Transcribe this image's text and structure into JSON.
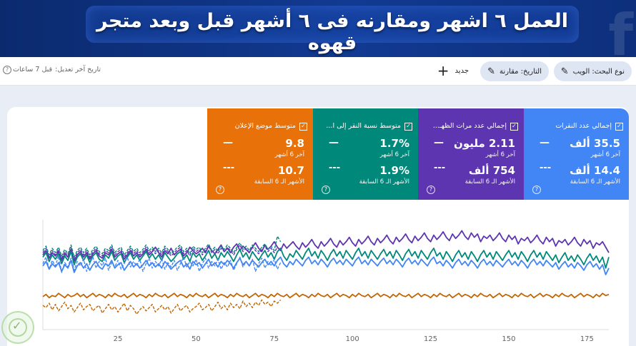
{
  "banner": {
    "title": "العمل ٦ اشهر ومقارنه فى ٦ أشهر قبل وبعد متجر قهوه",
    "logo_letter": "f"
  },
  "toolbar": {
    "search_type_label": "نوع البحث: الويب",
    "date_label": "التاريخ: مقارنة",
    "new_label": "جديد",
    "last_updated_label": "تاريخ آخر تعديل:",
    "last_updated_value": "قبل 7 ساعات"
  },
  "cards": [
    {
      "label": "إجمالي عدد النقرات",
      "value_current": "35.5 ألف",
      "caption_current": "آخر 6 أشهر",
      "value_previous": "14.4 ألف",
      "caption_previous": "الأشهر الـ 6 السابقة",
      "dash_current": "—",
      "dash_previous": "---",
      "color": "#4285f4"
    },
    {
      "label": "إجمالي عدد مرات الظهـ...",
      "value_current": "2.11 مليون",
      "caption_current": "آخر 6 أشهر",
      "value_previous": "754 ألف",
      "caption_previous": "الأشهر الـ 6 السابقة",
      "dash_current": "—",
      "dash_previous": "---",
      "color": "#5e35b1"
    },
    {
      "label": "متوسط نسبة النقر إلى ا...",
      "value_current": "1.7%",
      "caption_current": "آخر 6 أشهر",
      "value_previous": "1.9%",
      "caption_previous": "الأشهر الـ 6 السابقة",
      "dash_current": "—",
      "dash_previous": "---",
      "color": "#00897b"
    },
    {
      "label": "متوسط موضع الإعلان",
      "value_current": "9.8",
      "caption_current": "آخر 6 أشهر",
      "value_previous": "10.7",
      "caption_previous": "الأشهر الـ 6 السابقة",
      "dash_current": "—",
      "dash_previous": "---",
      "color": "#e8710a"
    }
  ],
  "icons": {
    "edit": "pencil-icon",
    "add": "plus-icon",
    "help": "help-circle-icon",
    "checkbox": "checkbox-checked-icon"
  },
  "chart_data": {
    "type": "line",
    "x_ticks": [
      "25",
      "50",
      "75",
      "100",
      "125",
      "150",
      "175"
    ],
    "xlim": [
      1,
      182
    ],
    "ylim": [
      0,
      100
    ],
    "grid": false,
    "legend": "none",
    "series": [
      {
        "key": "impressions_current",
        "color": "#5e35b1",
        "dashed": false,
        "values": [
          68,
          72,
          65,
          70,
          67,
          71,
          63,
          69,
          66,
          73,
          62,
          68,
          71,
          66,
          70,
          64,
          69,
          72,
          67,
          65,
          70,
          68,
          73,
          66,
          69,
          71,
          64,
          68,
          72,
          67,
          70,
          66,
          69,
          73,
          68,
          71,
          75,
          70,
          66,
          72,
          69,
          74,
          68,
          71,
          73,
          67,
          70,
          75,
          72,
          69,
          71,
          74,
          70,
          76,
          72,
          69,
          73,
          77,
          71,
          74,
          70,
          75,
          78,
          72,
          76,
          73,
          70,
          75,
          79,
          74,
          71,
          77,
          73,
          76,
          80,
          75,
          72,
          78,
          74,
          77,
          80,
          76,
          73,
          79,
          75,
          78,
          82,
          77,
          74,
          80,
          76,
          79,
          83,
          78,
          75,
          81,
          77,
          80,
          84,
          79,
          76,
          82,
          78,
          81,
          85,
          80,
          77,
          83,
          79,
          82,
          86,
          81,
          78,
          84,
          80,
          83,
          87,
          82,
          79,
          85,
          81,
          84,
          88,
          83,
          80,
          86,
          82,
          85,
          89,
          84,
          81,
          87,
          83,
          86,
          90,
          85,
          82,
          88,
          84,
          87,
          80,
          85,
          83,
          86,
          81,
          84,
          88,
          83,
          80,
          86,
          82,
          85,
          78,
          83,
          81,
          84,
          79,
          82,
          86,
          81,
          78,
          84,
          80,
          83,
          76,
          81,
          79,
          82,
          77,
          80,
          84,
          79,
          76,
          82,
          78,
          81,
          74,
          79,
          77,
          80,
          75,
          70
        ]
      },
      {
        "key": "clicks_current",
        "color": "#4285f4",
        "dashed": false,
        "values": [
          58,
          62,
          55,
          60,
          57,
          61,
          53,
          59,
          56,
          63,
          52,
          58,
          61,
          56,
          60,
          54,
          59,
          62,
          57,
          55,
          60,
          58,
          63,
          56,
          59,
          61,
          54,
          58,
          62,
          57,
          60,
          56,
          59,
          63,
          58,
          61,
          57,
          60,
          56,
          62,
          59,
          55,
          58,
          61,
          63,
          57,
          60,
          55,
          62,
          59,
          61,
          56,
          60,
          64,
          58,
          61,
          57,
          62,
          59,
          63,
          60,
          56,
          61,
          65,
          59,
          62,
          58,
          63,
          60,
          57,
          61,
          64,
          59,
          62,
          58,
          63,
          66,
          60,
          57,
          62,
          59,
          64,
          61,
          58,
          63,
          66,
          60,
          63,
          59,
          64,
          61,
          57,
          62,
          65,
          60,
          63,
          59,
          64,
          61,
          58,
          63,
          66,
          60,
          63,
          59,
          64,
          61,
          58,
          62,
          65,
          60,
          63,
          59,
          64,
          61,
          57,
          62,
          65,
          60,
          63,
          59,
          64,
          61,
          58,
          63,
          66,
          60,
          62,
          58,
          63,
          60,
          56,
          61,
          64,
          59,
          62,
          58,
          63,
          60,
          56,
          61,
          64,
          59,
          62,
          58,
          63,
          60,
          57,
          61,
          64,
          59,
          62,
          58,
          63,
          60,
          56,
          61,
          64,
          59,
          62,
          58,
          63,
          60,
          57,
          61,
          55,
          59,
          62,
          57,
          60,
          56,
          61,
          58,
          54,
          59,
          62,
          57,
          60,
          55,
          59,
          50,
          56
        ]
      },
      {
        "key": "ctr_current",
        "color": "#00897b",
        "dashed": false,
        "values": [
          66,
          70,
          62,
          68,
          64,
          69,
          60,
          67,
          63,
          71,
          59,
          66,
          69,
          63,
          68,
          61,
          67,
          70,
          64,
          62,
          68,
          65,
          71,
          63,
          67,
          69,
          61,
          66,
          70,
          64,
          68,
          63,
          67,
          71,
          65,
          69,
          64,
          68,
          63,
          70,
          66,
          62,
          65,
          69,
          71,
          64,
          68,
          62,
          70,
          66,
          69,
          63,
          67,
          72,
          65,
          69,
          63,
          70,
          66,
          71,
          67,
          62,
          68,
          73,
          66,
          70,
          64,
          71,
          67,
          63,
          68,
          72,
          66,
          70,
          64,
          71,
          74,
          67,
          63,
          69,
          66,
          72,
          68,
          64,
          70,
          74,
          67,
          71,
          65,
          72,
          68,
          63,
          69,
          73,
          67,
          71,
          65,
          72,
          68,
          64,
          70,
          74,
          67,
          71,
          65,
          72,
          68,
          64,
          69,
          73,
          67,
          71,
          65,
          72,
          68,
          63,
          69,
          73,
          67,
          71,
          65,
          72,
          68,
          64,
          70,
          74,
          67,
          70,
          64,
          71,
          67,
          62,
          68,
          72,
          66,
          70,
          64,
          71,
          67,
          62,
          68,
          72,
          66,
          70,
          64,
          71,
          67,
          63,
          68,
          72,
          66,
          70,
          64,
          71,
          67,
          62,
          68,
          72,
          66,
          70,
          64,
          71,
          67,
          63,
          68,
          61,
          66,
          70,
          63,
          67,
          62,
          68,
          64,
          59,
          65,
          69,
          63,
          67,
          61,
          66,
          56,
          66
        ]
      },
      {
        "key": "position_current",
        "color": "#c26401",
        "dashed": false,
        "values": [
          30,
          32,
          29,
          31,
          30,
          33,
          31,
          29,
          32,
          30,
          31,
          33,
          30,
          32,
          29,
          31,
          33,
          30,
          32,
          31,
          29,
          32,
          30,
          33,
          31,
          30,
          32,
          29,
          31,
          33,
          30,
          32,
          31,
          29,
          32,
          30,
          33,
          31,
          30,
          32,
          29,
          31,
          33,
          30,
          32,
          31,
          29,
          32,
          30,
          33,
          31,
          30,
          32,
          29,
          31,
          33,
          30,
          32,
          31,
          29,
          32,
          30,
          33,
          31,
          30,
          32,
          29,
          31,
          33,
          30,
          32,
          31,
          29,
          32,
          30,
          33,
          31,
          30,
          32,
          29,
          31,
          33,
          30,
          32,
          31,
          29,
          32,
          30,
          33,
          31,
          30,
          32,
          29,
          31,
          33,
          30,
          32,
          31,
          29,
          32,
          30,
          33,
          31,
          30,
          32,
          29,
          31,
          33,
          30,
          32,
          31,
          29,
          32,
          30,
          33,
          31,
          30,
          32,
          29,
          31,
          33,
          30,
          32,
          31,
          29,
          32,
          30,
          33,
          31,
          30,
          32,
          29,
          31,
          33,
          30,
          32,
          31,
          29,
          32,
          30,
          33,
          31,
          30,
          32,
          29,
          31,
          33,
          30,
          32,
          31,
          29,
          32,
          30,
          33,
          31,
          30,
          32,
          29,
          31,
          33,
          30,
          32,
          31,
          29,
          32,
          30,
          33,
          31,
          30,
          32,
          29,
          31,
          33,
          30,
          32,
          31,
          29,
          32,
          30,
          33,
          31,
          32
        ]
      },
      {
        "key": "clicks_previous",
        "color": "#4285f4",
        "dashed": true,
        "values": [
          60,
          66,
          55,
          63,
          58,
          67,
          52,
          61,
          57,
          65,
          54,
          62,
          58,
          64,
          53,
          60,
          66,
          56,
          62,
          58,
          65,
          54,
          61,
          57,
          63,
          55,
          60,
          66,
          57,
          62,
          58,
          64,
          53,
          60,
          65,
          56,
          62,
          58,
          64,
          55,
          61,
          57,
          63,
          54,
          60,
          66,
          57,
          62,
          58,
          64,
          53,
          60,
          65,
          56,
          62,
          58,
          64,
          55,
          61,
          57,
          63,
          54,
          60,
          66,
          57,
          62,
          58,
          64,
          53,
          60,
          65,
          56,
          62,
          58,
          64,
          55,
          61
        ]
      },
      {
        "key": "impressions_previous",
        "color": "#5e35b1",
        "dashed": true,
        "values": [
          70,
          74,
          66,
          72,
          68,
          73,
          65,
          71,
          67,
          75,
          64,
          70,
          73,
          68,
          72,
          66,
          71,
          74,
          69,
          67,
          72,
          70,
          75,
          68,
          71,
          73,
          66,
          70,
          74,
          69,
          72,
          68,
          71,
          75,
          70,
          73,
          69,
          72,
          68,
          74,
          71,
          67,
          70,
          73,
          75,
          69,
          72,
          67,
          74,
          71,
          73,
          68,
          72,
          76,
          70,
          73,
          69,
          74,
          71,
          75,
          72,
          68,
          73,
          77,
          71,
          74,
          70,
          75,
          72,
          69,
          73,
          76,
          71,
          74,
          70,
          75,
          72
        ]
      },
      {
        "key": "ctr_previous",
        "color": "#00897b",
        "dashed": true,
        "values": [
          72,
          76,
          68,
          74,
          70,
          75,
          67,
          73,
          69,
          77,
          66,
          72,
          75,
          70,
          74,
          68,
          73,
          76,
          71,
          69,
          74,
          72,
          77,
          70,
          73,
          75,
          68,
          72,
          76,
          71,
          74,
          70,
          73,
          77,
          72,
          75,
          71,
          74,
          70,
          76,
          73,
          69,
          72,
          75,
          77,
          71,
          74,
          69,
          76,
          73,
          75,
          70,
          74,
          78,
          72,
          75,
          71,
          76,
          73,
          77,
          74,
          70,
          75,
          79,
          73,
          76,
          72,
          77,
          74,
          71,
          75,
          78,
          73,
          76,
          72,
          85,
          80
        ]
      },
      {
        "key": "position_previous",
        "color": "#c26401",
        "dashed": true,
        "values": [
          22,
          20,
          24,
          18,
          23,
          17,
          21,
          25,
          19,
          22,
          16,
          20,
          24,
          18,
          21,
          23,
          17,
          20,
          22,
          15,
          19,
          23,
          18,
          21,
          16,
          20,
          24,
          17,
          22,
          19,
          14,
          18,
          21,
          17,
          20,
          23,
          16,
          19,
          22,
          18,
          21,
          15,
          19,
          23,
          17,
          20,
          22,
          16,
          19,
          21,
          24,
          18,
          20,
          23,
          17,
          21,
          25,
          19,
          22,
          18,
          24,
          20,
          23,
          19,
          26,
          21,
          24,
          20,
          25,
          22,
          27,
          23,
          25,
          21,
          26,
          24,
          27
        ]
      }
    ]
  }
}
